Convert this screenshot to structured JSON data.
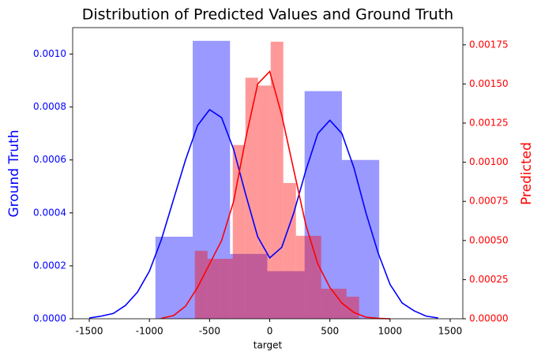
{
  "chart_data": {
    "type": "histogram",
    "title": "Distribution of Predicted Values and Ground Truth",
    "xlabel": "target",
    "ylabel": "Ground Truth",
    "y2label": "Predicted",
    "ylabel_color": "#0000ff",
    "y2label_color": "#ff0000",
    "xlim": [
      -1638,
      1605
    ],
    "xticks": [
      -1500,
      -1000,
      -500,
      0,
      500,
      1000,
      1500
    ],
    "ylim": [
      0,
      0.0011
    ],
    "yticks": [
      {
        "value": 0,
        "label": "0.0000"
      },
      {
        "value": 0.0002,
        "label": "0.0002"
      },
      {
        "value": 0.0004,
        "label": "0.0004"
      },
      {
        "value": 0.0006,
        "label": "0.0006"
      },
      {
        "value": 0.0008,
        "label": "0.0008"
      },
      {
        "value": 0.001,
        "label": "0.0010"
      }
    ],
    "y2lim": [
      0,
      0.00186
    ],
    "y2ticks": [
      {
        "value": 0,
        "label": "0.00000"
      },
      {
        "value": 0.00025,
        "label": "0.00025"
      },
      {
        "value": 0.0005,
        "label": "0.00050"
      },
      {
        "value": 0.00075,
        "label": "0.00075"
      },
      {
        "value": 0.001,
        "label": "0.00100"
      },
      {
        "value": 0.00125,
        "label": "0.00125"
      },
      {
        "value": 0.0015,
        "label": "0.00150"
      },
      {
        "value": 0.00175,
        "label": "0.00175"
      }
    ],
    "hist": [
      {
        "axis": "y",
        "color": "#0000ff",
        "opacity": 0.4,
        "bins": [
          -950,
          -640,
          -330,
          -20,
          290,
          600,
          910
        ],
        "values": [
          0.00031,
          0.00105,
          0.000245,
          0.00018,
          0.00086,
          0.0006
        ]
      },
      {
        "axis": "y2",
        "color": "#ff0000",
        "opacity": 0.4,
        "bins": [
          -622,
          -517,
          -412,
          -307,
          -202,
          -97,
          8,
          113,
          218,
          323,
          428,
          533,
          638,
          743
        ],
        "values": [
          0.000434,
          0.000383,
          0.000383,
          0.00111,
          0.00154,
          0.00149,
          0.00177,
          0.000867,
          0.00053,
          0.00053,
          0.000192,
          0.000192,
          0.000141
        ]
      }
    ],
    "kde": [
      {
        "axis": "y",
        "color": "#0000ff",
        "x": [
          -1500,
          -1400,
          -1300,
          -1200,
          -1100,
          -1000,
          -900,
          -800,
          -700,
          -600,
          -500,
          -400,
          -300,
          -200,
          -100,
          0,
          100,
          200,
          300,
          400,
          500,
          600,
          700,
          800,
          900,
          1000,
          1100,
          1200,
          1300,
          1400
        ],
        "values": [
          3e-06,
          1e-05,
          2e-05,
          5e-05,
          0.0001,
          0.00018,
          0.0003,
          0.00045,
          0.0006,
          0.00073,
          0.00079,
          0.00076,
          0.00064,
          0.00047,
          0.00031,
          0.00023,
          0.00027,
          0.0004,
          0.00056,
          0.0007,
          0.00075,
          0.0007,
          0.00057,
          0.0004,
          0.00025,
          0.00013,
          6e-05,
          3e-05,
          1e-05,
          3e-06
        ]
      },
      {
        "axis": "y2",
        "color": "#ff0000",
        "x": [
          -900,
          -800,
          -700,
          -600,
          -500,
          -400,
          -300,
          -200,
          -100,
          0,
          100,
          200,
          300,
          400,
          500,
          600,
          700,
          800,
          900,
          1000
        ],
        "values": [
          3e-06,
          2e-05,
          8e-05,
          0.0002,
          0.00035,
          0.0005,
          0.00075,
          0.00115,
          0.0015,
          0.00158,
          0.0013,
          0.00095,
          0.0006,
          0.00035,
          0.0002,
          0.0001,
          4e-05,
          1e-05,
          3e-06,
          0
        ]
      }
    ]
  }
}
